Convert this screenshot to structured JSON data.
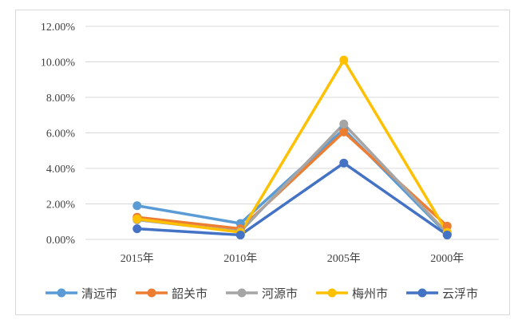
{
  "chart_data": {
    "type": "line",
    "title": "",
    "xlabel": "",
    "ylabel": "",
    "categories": [
      "2015年",
      "2010年",
      "2005年",
      "2000年"
    ],
    "ylim": [
      0,
      12
    ],
    "yticks": [
      "0.00%",
      "2.00%",
      "4.00%",
      "6.00%",
      "8.00%",
      "10.00%",
      "12.00%"
    ],
    "grid": true,
    "legend_position": "bottom",
    "series": [
      {
        "name": "清远市",
        "color": "#5B9BD5",
        "values": [
          1.9,
          0.9,
          6.2,
          0.3
        ]
      },
      {
        "name": "韶关市",
        "color": "#ED7D31",
        "values": [
          1.25,
          0.6,
          6.05,
          0.75
        ]
      },
      {
        "name": "河源市",
        "color": "#A5A5A5",
        "values": [
          1.1,
          0.45,
          6.5,
          0.35
        ]
      },
      {
        "name": "梅州市",
        "color": "#FFC000",
        "values": [
          1.15,
          0.4,
          10.1,
          0.4
        ]
      },
      {
        "name": "云浮市",
        "color": "#4472C4",
        "values": [
          0.6,
          0.25,
          4.3,
          0.25
        ]
      }
    ]
  }
}
